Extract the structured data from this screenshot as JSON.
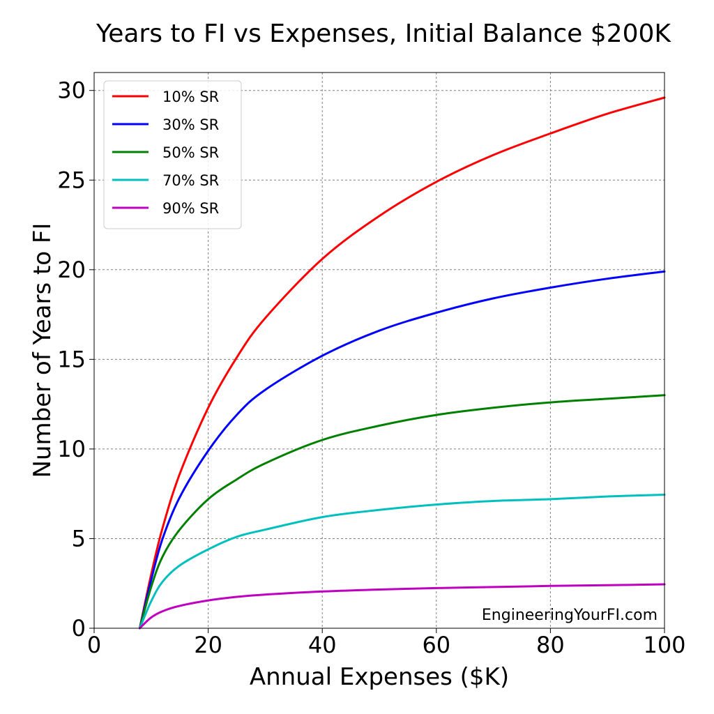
{
  "chart_data": {
    "type": "line",
    "title": "Years to FI vs Expenses, Initial Balance $200K",
    "xlabel": "Annual Expenses ($K)",
    "ylabel": "Number of Years to FI",
    "xlim": [
      0,
      100
    ],
    "ylim": [
      0,
      31
    ],
    "xticks": [
      "0",
      "20",
      "40",
      "60",
      "80",
      "100"
    ],
    "yticks": [
      "0",
      "5",
      "10",
      "15",
      "20",
      "25",
      "30"
    ],
    "grid": true,
    "legend_position": "top-left",
    "watermark": "EngineeringYourFI.com",
    "x": [
      8,
      10,
      12,
      15,
      20,
      25,
      30,
      40,
      50,
      60,
      70,
      80,
      90,
      100
    ],
    "series": [
      {
        "name": "10% SR",
        "color": "#ff0000",
        "values": [
          0,
          3.0,
          5.6,
          8.6,
          12.3,
          15.1,
          17.3,
          20.6,
          23.0,
          24.9,
          26.4,
          27.6,
          28.7,
          29.6
        ]
      },
      {
        "name": "30% SR",
        "color": "#0000ff",
        "values": [
          0,
          2.7,
          5.0,
          7.3,
          9.9,
          11.9,
          13.3,
          15.2,
          16.6,
          17.6,
          18.4,
          19.0,
          19.5,
          19.9
        ]
      },
      {
        "name": "50% SR",
        "color": "#008000",
        "values": [
          0,
          2.3,
          4.0,
          5.5,
          7.2,
          8.3,
          9.2,
          10.5,
          11.3,
          11.9,
          12.3,
          12.6,
          12.8,
          13.0
        ]
      },
      {
        "name": "70% SR",
        "color": "#00bfbf",
        "values": [
          0,
          1.5,
          2.6,
          3.5,
          4.4,
          5.1,
          5.5,
          6.2,
          6.6,
          6.9,
          7.1,
          7.2,
          7.35,
          7.45
        ]
      },
      {
        "name": "90% SR",
        "color": "#bf00bf",
        "values": [
          0,
          0.6,
          0.95,
          1.25,
          1.55,
          1.75,
          1.88,
          2.05,
          2.16,
          2.24,
          2.3,
          2.36,
          2.4,
          2.45
        ]
      }
    ]
  }
}
